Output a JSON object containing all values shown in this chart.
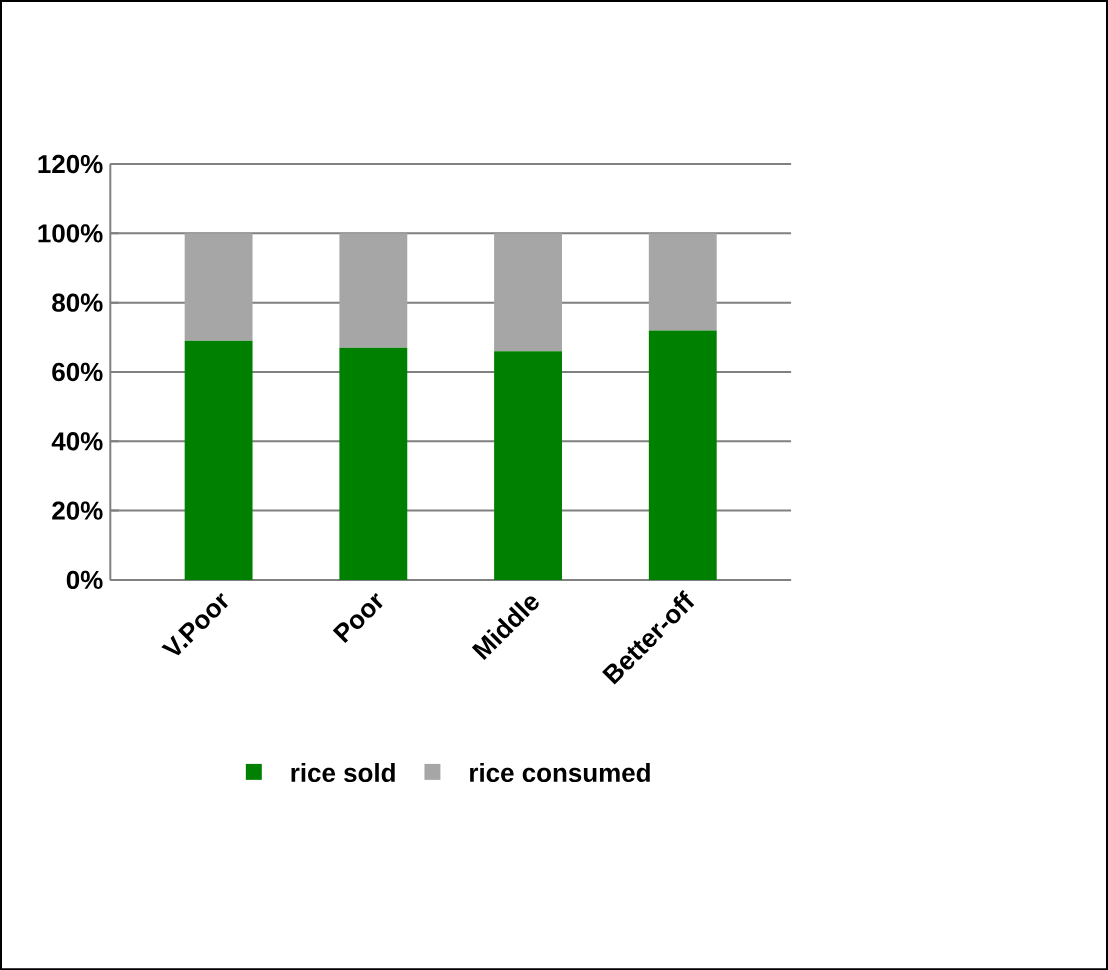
{
  "chart_data": {
    "type": "bar",
    "stacked": true,
    "categories": [
      "V.Poor",
      "Poor",
      "Middle",
      "Better-off"
    ],
    "series": [
      {
        "name": "rice sold",
        "color": "#008000",
        "values": [
          69,
          67,
          66,
          72
        ]
      },
      {
        "name": "rice consumed",
        "color": "#a6a6a6",
        "values": [
          31,
          33,
          34,
          28
        ]
      }
    ],
    "ylim": [
      0,
      120
    ],
    "yticks": [
      {
        "value": 0,
        "label": "0%"
      },
      {
        "value": 20,
        "label": "20%"
      },
      {
        "value": 40,
        "label": "40%"
      },
      {
        "value": 60,
        "label": "60%"
      },
      {
        "value": 80,
        "label": "80%"
      },
      {
        "value": 100,
        "label": "100%"
      },
      {
        "value": 120,
        "label": "120%"
      }
    ],
    "grid": "y",
    "legend": "bottom"
  }
}
